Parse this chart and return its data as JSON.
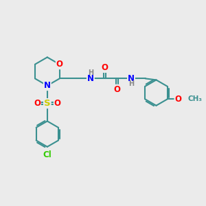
{
  "bg_color": "#ebebeb",
  "bond_color": "#3a9090",
  "bond_width": 1.5,
  "atom_colors": {
    "O": "#ff0000",
    "N": "#0000ff",
    "S": "#cccc00",
    "Cl": "#33cc00",
    "H": "#888888",
    "C": "#3a9090"
  },
  "fs": 8.5
}
